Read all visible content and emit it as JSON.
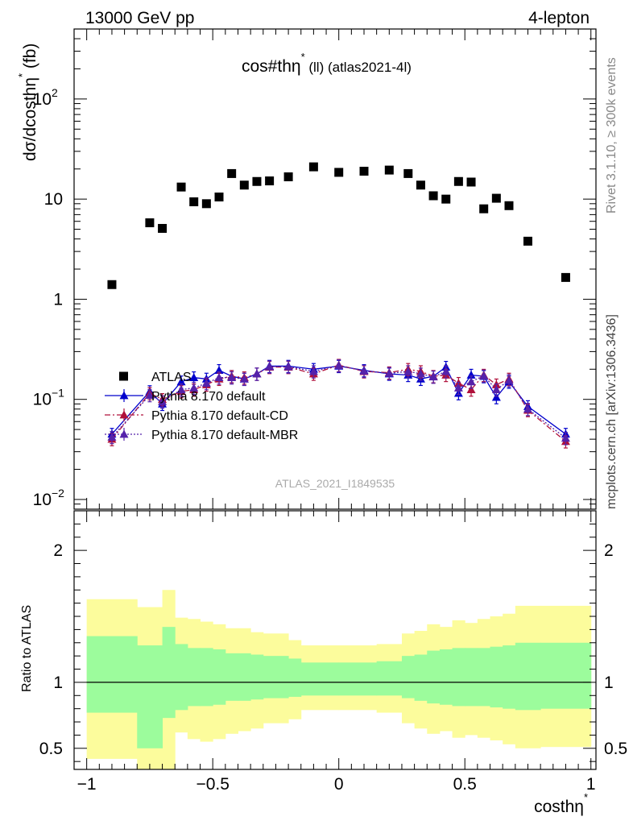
{
  "header": {
    "left": "13000 GeV pp",
    "right": "4-lepton"
  },
  "side_labels": {
    "rivet": "Rivet 3.1.10, ≥ 300k events",
    "mcplots": "mcplots.cern.ch [arXiv:1306.3436]"
  },
  "chart_data": {
    "type": "scatter",
    "title": "cos#thη* (ll) (atlas2021-4l)",
    "title_main": "cos#thη",
    "title_sup": "*",
    "title_rest": " (ll) (atlas2021-4l)",
    "ylabel": "dσ/dcosthη* (fb)",
    "ylabel_main": "dσ/dcosthη",
    "ylabel_sup": "*",
    "ylabel_rest": " (fb)",
    "xlabel": "costhη*",
    "xlabel_main": "costhη",
    "xlabel_sup": "*",
    "ratio_ylabel": "Ratio to ATLAS",
    "watermark": "ATLAS_2021_I1849535",
    "xlim": [
      -1.05,
      1.02
    ],
    "ylim": [
      0.008,
      500
    ],
    "yscale": "log",
    "ratio_ylim": [
      0.34,
      2.3
    ],
    "x_ticks": [
      -1,
      -0.5,
      0,
      0.5,
      1
    ],
    "x_tick_labels": [
      "−1",
      "−0.5",
      "0",
      "0.5",
      "1"
    ],
    "y_ticks": [
      0.01,
      0.1,
      1,
      10,
      100
    ],
    "y_tick_labels": [
      {
        "base": "10",
        "exp": "−2"
      },
      {
        "base": "10",
        "exp": "−1"
      },
      {
        "base": "1",
        "exp": ""
      },
      {
        "base": "10",
        "exp": ""
      },
      {
        "base": "10",
        "exp": "2"
      }
    ],
    "ratio_ticks": [
      0.5,
      1,
      2
    ],
    "ratio_tick_labels": [
      "0.5",
      "1",
      "2"
    ],
    "legend": {
      "position": "middle-left",
      "entries": [
        "ATLAS",
        "Pythia 8.170 default",
        "Pythia 8.170 default-CD",
        "Pythia 8.170 default-MBR"
      ]
    },
    "x": [
      -0.9,
      -0.75,
      -0.7,
      -0.625,
      -0.575,
      -0.525,
      -0.475,
      -0.425,
      -0.375,
      -0.325,
      -0.275,
      -0.2,
      -0.1,
      0.0,
      0.1,
      0.2,
      0.275,
      0.325,
      0.375,
      0.425,
      0.475,
      0.525,
      0.575,
      0.625,
      0.675,
      0.75,
      0.9
    ],
    "series": [
      {
        "name": "ATLAS",
        "color": "#000000",
        "marker": "square",
        "values": [
          1.4,
          5.8,
          5.1,
          13.2,
          9.4,
          9.0,
          10.5,
          18.0,
          13.8,
          15.0,
          15.2,
          16.7,
          21.0,
          18.5,
          19.0,
          19.5,
          18.0,
          13.8,
          10.8,
          10.0,
          15.0,
          14.8,
          8.0,
          10.2,
          8.6,
          3.8,
          1.65
        ]
      },
      {
        "name": "Pythia 8.170 default",
        "color": "#0000cc",
        "marker": "triangle",
        "line": "solid",
        "values": [
          0.045,
          0.12,
          0.09,
          0.15,
          0.165,
          0.16,
          0.195,
          0.17,
          0.16,
          0.18,
          0.215,
          0.215,
          0.2,
          0.215,
          0.195,
          0.18,
          0.175,
          0.16,
          0.17,
          0.21,
          0.115,
          0.175,
          0.17,
          0.105,
          0.15,
          0.085,
          0.045
        ]
      },
      {
        "name": "Pythia 8.170 default-CD",
        "color": "#b0103a",
        "marker": "triangle",
        "line": "dashdot",
        "values": [
          0.04,
          0.115,
          0.1,
          0.12,
          0.125,
          0.14,
          0.16,
          0.17,
          0.165,
          0.18,
          0.21,
          0.21,
          0.18,
          0.22,
          0.19,
          0.185,
          0.2,
          0.19,
          0.17,
          0.175,
          0.145,
          0.125,
          0.175,
          0.14,
          0.16,
          0.078,
          0.038
        ]
      },
      {
        "name": "Pythia 8.170 default-MBR",
        "color": "#5522aa",
        "marker": "triangle",
        "line": "dotted",
        "values": [
          0.042,
          0.11,
          0.095,
          0.125,
          0.13,
          0.145,
          0.165,
          0.165,
          0.16,
          0.18,
          0.212,
          0.212,
          0.19,
          0.218,
          0.192,
          0.182,
          0.19,
          0.18,
          0.168,
          0.19,
          0.13,
          0.15,
          0.172,
          0.125,
          0.155,
          0.08,
          0.041
        ]
      }
    ],
    "ratio_band_colors": {
      "inner": "#9cfc9c",
      "outer": "#fcfc9c"
    },
    "ratio_bins": [
      {
        "lo": -1.0,
        "hi": -0.8,
        "inner": [
          0.77,
          1.35
        ],
        "outer": [
          0.42,
          1.63
        ]
      },
      {
        "lo": -0.8,
        "hi": -0.7,
        "inner": [
          0.5,
          1.28
        ],
        "outer": [
          0.34,
          1.57
        ]
      },
      {
        "lo": -0.7,
        "hi": -0.65,
        "inner": [
          0.73,
          1.42
        ],
        "outer": [
          0.34,
          1.7
        ]
      },
      {
        "lo": -0.65,
        "hi": -0.6,
        "inner": [
          0.79,
          1.29
        ],
        "outer": [
          0.62,
          1.49
        ]
      },
      {
        "lo": -0.6,
        "hi": -0.55,
        "inner": [
          0.82,
          1.26
        ],
        "outer": [
          0.57,
          1.48
        ]
      },
      {
        "lo": -0.55,
        "hi": -0.5,
        "inner": [
          0.82,
          1.26
        ],
        "outer": [
          0.55,
          1.46
        ]
      },
      {
        "lo": -0.5,
        "hi": -0.45,
        "inner": [
          0.83,
          1.25
        ],
        "outer": [
          0.57,
          1.44
        ]
      },
      {
        "lo": -0.45,
        "hi": -0.4,
        "inner": [
          0.86,
          1.22
        ],
        "outer": [
          0.61,
          1.41
        ]
      },
      {
        "lo": -0.4,
        "hi": -0.35,
        "inner": [
          0.86,
          1.22
        ],
        "outer": [
          0.63,
          1.41
        ]
      },
      {
        "lo": -0.35,
        "hi": -0.3,
        "inner": [
          0.87,
          1.21
        ],
        "outer": [
          0.65,
          1.38
        ]
      },
      {
        "lo": -0.3,
        "hi": -0.2,
        "inner": [
          0.88,
          1.2
        ],
        "outer": [
          0.69,
          1.37
        ]
      },
      {
        "lo": -0.2,
        "hi": -0.15,
        "inner": [
          0.89,
          1.18
        ],
        "outer": [
          0.72,
          1.32
        ]
      },
      {
        "lo": -0.15,
        "hi": 0.0,
        "inner": [
          0.9,
          1.15
        ],
        "outer": [
          0.79,
          1.28
        ]
      },
      {
        "lo": 0.0,
        "hi": 0.15,
        "inner": [
          0.9,
          1.15
        ],
        "outer": [
          0.79,
          1.28
        ]
      },
      {
        "lo": 0.15,
        "hi": 0.25,
        "inner": [
          0.9,
          1.16
        ],
        "outer": [
          0.77,
          1.29
        ]
      },
      {
        "lo": 0.25,
        "hi": 0.3,
        "inner": [
          0.88,
          1.2
        ],
        "outer": [
          0.69,
          1.37
        ]
      },
      {
        "lo": 0.3,
        "hi": 0.35,
        "inner": [
          0.86,
          1.21
        ],
        "outer": [
          0.65,
          1.39
        ]
      },
      {
        "lo": 0.35,
        "hi": 0.4,
        "inner": [
          0.84,
          1.24
        ],
        "outer": [
          0.61,
          1.44
        ]
      },
      {
        "lo": 0.4,
        "hi": 0.45,
        "inner": [
          0.83,
          1.25
        ],
        "outer": [
          0.63,
          1.42
        ]
      },
      {
        "lo": 0.45,
        "hi": 0.5,
        "inner": [
          0.82,
          1.26
        ],
        "outer": [
          0.58,
          1.47
        ]
      },
      {
        "lo": 0.5,
        "hi": 0.55,
        "inner": [
          0.82,
          1.26
        ],
        "outer": [
          0.6,
          1.45
        ]
      },
      {
        "lo": 0.55,
        "hi": 0.6,
        "inner": [
          0.82,
          1.26
        ],
        "outer": [
          0.58,
          1.48
        ]
      },
      {
        "lo": 0.6,
        "hi": 0.65,
        "inner": [
          0.81,
          1.27
        ],
        "outer": [
          0.56,
          1.5
        ]
      },
      {
        "lo": 0.65,
        "hi": 0.7,
        "inner": [
          0.8,
          1.28
        ],
        "outer": [
          0.53,
          1.52
        ]
      },
      {
        "lo": 0.7,
        "hi": 0.8,
        "inner": [
          0.79,
          1.3
        ],
        "outer": [
          0.5,
          1.58
        ]
      },
      {
        "lo": 0.8,
        "hi": 1.0,
        "inner": [
          0.8,
          1.3
        ],
        "outer": [
          0.51,
          1.58
        ]
      }
    ]
  }
}
